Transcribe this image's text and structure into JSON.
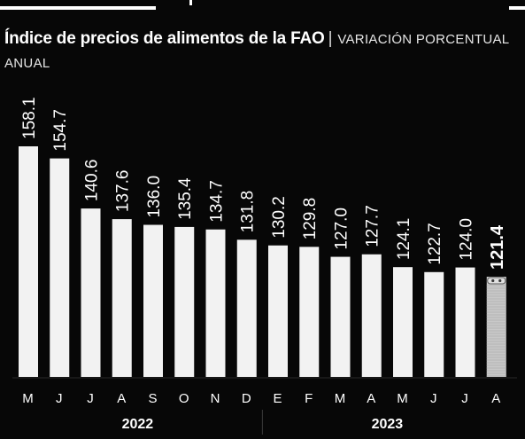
{
  "title": "Índice de precios de alimentos de la FAO",
  "separator": "|",
  "subtitle": "VARIACIÓN PORCENTUAL ANUAL",
  "colors": {
    "background": "#070707",
    "bar": "#f2f2f2",
    "bar_highlight": "#c8c8c8",
    "text": "#ffffff"
  },
  "chart_data": {
    "type": "bar",
    "categories": [
      "M",
      "J",
      "J",
      "A",
      "S",
      "O",
      "N",
      "D",
      "E",
      "F",
      "M",
      "A",
      "M",
      "J",
      "J",
      "A"
    ],
    "values": [
      158.1,
      154.7,
      140.6,
      137.6,
      136.0,
      135.4,
      134.7,
      131.8,
      130.2,
      129.8,
      127.0,
      127.7,
      124.1,
      122.7,
      124.0,
      121.4
    ],
    "value_labels": [
      "158.1",
      "154.7",
      "140.6",
      "137.6",
      "136.0",
      "135.4",
      "134.7",
      "131.8",
      "130.2",
      "129.8",
      "127.0",
      "127.7",
      "124.1",
      "122.7",
      "124.0",
      "121.4"
    ],
    "highlight_index": 15,
    "year_groups": [
      {
        "label": "2022",
        "start": 0,
        "end": 7
      },
      {
        "label": "2023",
        "start": 8,
        "end": 15
      }
    ],
    "xlabel": "",
    "ylabel": "",
    "grid": false,
    "legend": "none"
  }
}
